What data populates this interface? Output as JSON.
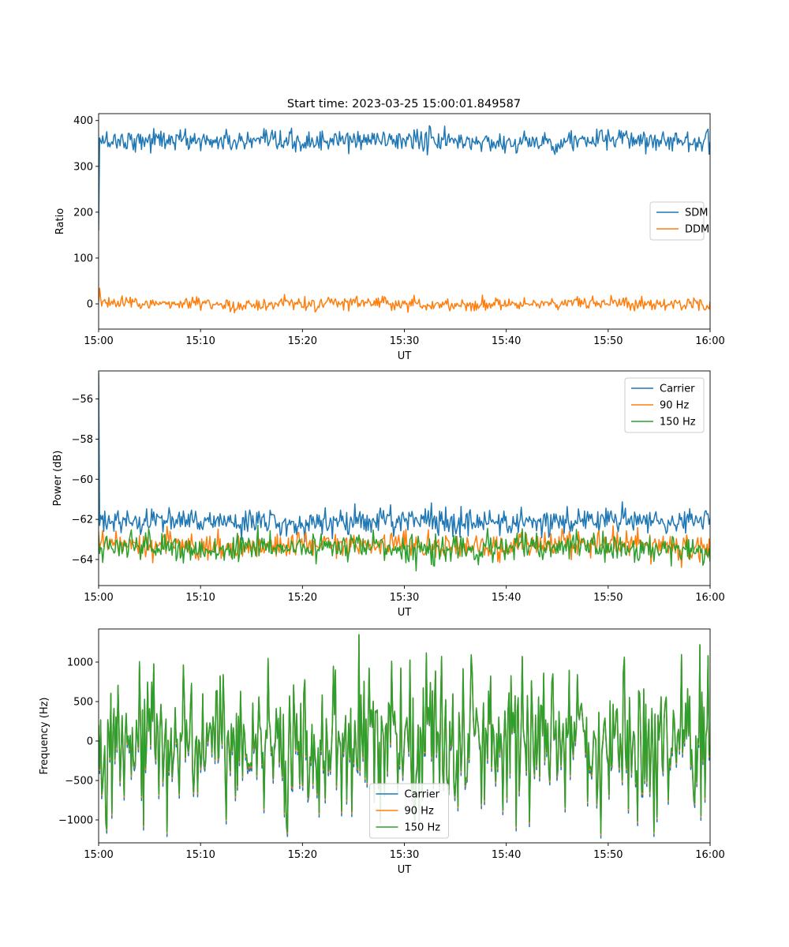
{
  "figure_title": "Start time: 2023-03-25 15:00:01.849587",
  "chart_data": [
    {
      "type": "line",
      "title": "Start time: 2023-03-25 15:00:01.849587",
      "xlabel": "UT",
      "ylabel": "Ratio",
      "xlim": [
        "15:00",
        "16:00"
      ],
      "ylim": [
        -55,
        415
      ],
      "xticks": [
        "15:00",
        "15:10",
        "15:20",
        "15:30",
        "15:40",
        "15:50",
        "16:00"
      ],
      "yticks": [
        0,
        100,
        200,
        300,
        400
      ],
      "ytick_labels": [
        "0",
        "100",
        "200",
        "300",
        "400"
      ],
      "legend_position": "center-right",
      "grid": false,
      "series": [
        {
          "name": "SDM",
          "color": "#1f77b4",
          "start_values": [
            160,
            362,
            355,
            350
          ],
          "base": 355,
          "noise": 13,
          "n": 600
        },
        {
          "name": "DDM",
          "color": "#ff7f0e",
          "start_values": [
            5,
            34,
            12,
            -5
          ],
          "base": 0,
          "noise": 8,
          "n": 600
        }
      ]
    },
    {
      "type": "line",
      "title": "",
      "xlabel": "UT",
      "ylabel": "Power (dB)",
      "xlim": [
        "15:00",
        "16:00"
      ],
      "ylim": [
        -65.3,
        -54.6
      ],
      "xticks": [
        "15:00",
        "15:10",
        "15:20",
        "15:30",
        "15:40",
        "15:50",
        "16:00"
      ],
      "yticks": [
        -64,
        -62,
        -60,
        -58,
        -56
      ],
      "ytick_labels": [
        "−64",
        "−62",
        "−60",
        "−58",
        "−56"
      ],
      "legend_position": "top-right",
      "grid": false,
      "series": [
        {
          "name": "Carrier",
          "color": "#1f77b4",
          "start_values": [
            -54.7,
            -62.3,
            -61.8,
            -62.0
          ],
          "base": -62.1,
          "noise": 0.35,
          "n": 600
        },
        {
          "name": "90 Hz",
          "color": "#ff7f0e",
          "start_values": [
            -62.6,
            -63.5,
            -63.2
          ],
          "base": -63.3,
          "noise": 0.38,
          "n": 600
        },
        {
          "name": "150 Hz",
          "color": "#2ca02c",
          "start_values": [
            -62.8,
            -63.7,
            -63.4
          ],
          "base": -63.4,
          "noise": 0.38,
          "n": 600
        }
      ]
    },
    {
      "type": "line",
      "title": "",
      "xlabel": "UT",
      "ylabel": "Frequency (Hz)",
      "xlim": [
        "15:00",
        "16:00"
      ],
      "ylim": [
        -1290,
        1420
      ],
      "xticks": [
        "15:00",
        "15:10",
        "15:20",
        "15:30",
        "15:40",
        "15:50",
        "16:00"
      ],
      "yticks": [
        -1000,
        -500,
        0,
        500,
        1000
      ],
      "ytick_labels": [
        "−1000",
        "−500",
        "0",
        "500",
        "1000"
      ],
      "legend_position": "lower-center",
      "grid": false,
      "series": [
        {
          "name": "Carrier",
          "color": "#1f77b4",
          "offset": -60
        },
        {
          "name": "90 Hz",
          "color": "#ff7f0e",
          "offset": -20
        },
        {
          "name": "150 Hz",
          "color": "#2ca02c",
          "offset": 0
        }
      ],
      "base": 0,
      "noise": 420,
      "n": 600,
      "peaks_max": 1350,
      "peaks_min": -1170
    }
  ]
}
